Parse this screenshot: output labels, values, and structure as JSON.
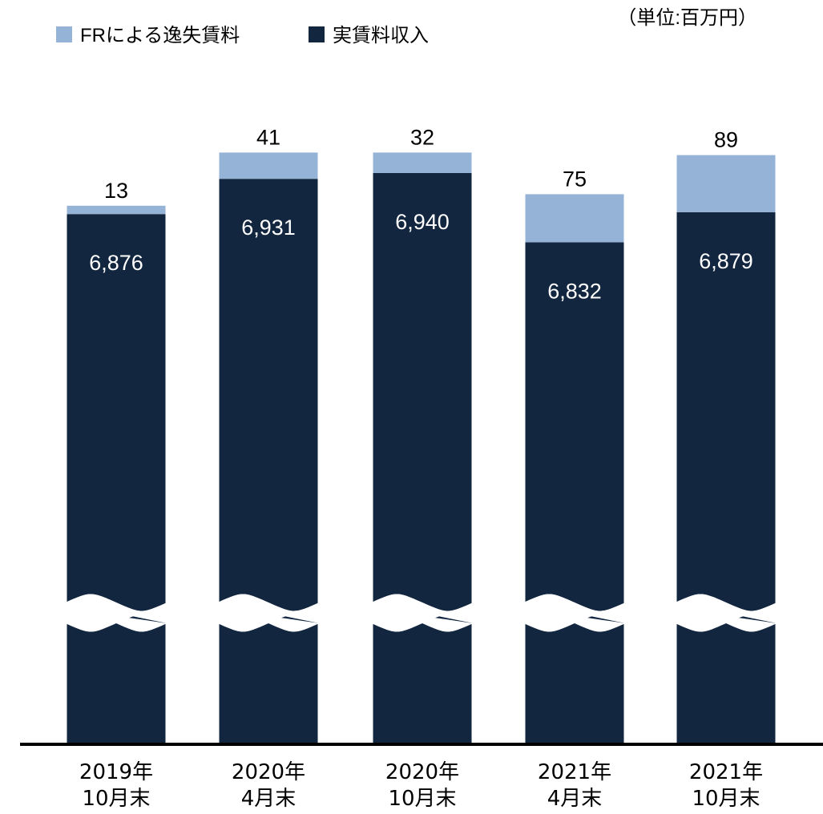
{
  "chart_data": {
    "type": "stacked-bar",
    "note": "（単位:百万円）",
    "categories": [
      "2019年\n10月末",
      "2020年\n4月末",
      "2020年\n10月末",
      "2021年\n4月末",
      "2021年\n10月末"
    ],
    "series": [
      {
        "name": "実賃料収入",
        "color": "#12263f",
        "values": [
          6876,
          6931,
          6940,
          6832,
          6879
        ],
        "value_labels": [
          "6,876",
          "6,931",
          "6,940",
          "6,832",
          "6,879"
        ]
      },
      {
        "name": "FRによる逸失賃料",
        "color": "#95b3d7",
        "values": [
          13,
          41,
          32,
          75,
          89
        ]
      }
    ],
    "axis_break": true
  }
}
